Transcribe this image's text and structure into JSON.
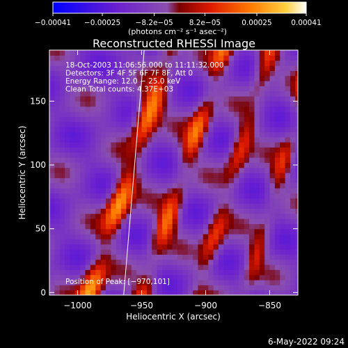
{
  "chart_data": {
    "type": "heatmap",
    "title": "Reconstructed RHESSI Image",
    "xlabel": "Heliocentric X (arcsec)",
    "ylabel": "Heliocentric Y (arcsec)",
    "xlim": [
      -1022,
      -828
    ],
    "ylim": [
      -2,
      190
    ],
    "xticks": [
      -1000,
      -950,
      -900,
      -850
    ],
    "xtick_labels": [
      "−1000",
      "−950",
      "−900",
      "−850"
    ],
    "yticks": [
      0,
      50,
      100,
      150
    ],
    "ytick_labels": [
      "0",
      "50",
      "100",
      "150"
    ],
    "colorbar": {
      "min": -0.00041,
      "max": 0.00041,
      "ticks": [
        -0.00041,
        -0.00025,
        -8.2e-05,
        8.2e-05,
        0.00025,
        0.00041
      ],
      "tick_labels": [
        "−0.00041",
        "−0.00025",
        "−8.2e−05",
        "8.2e−05",
        "0.00025",
        "0.00041"
      ],
      "units_label": "(photons cm⁻² s⁻¹ asec⁻²)",
      "colors": [
        "#0000ff",
        "#7a22cc",
        "#8a4fb0",
        "#cc1100",
        "#ff6a00",
        "#ffd040",
        "#ffffff"
      ]
    },
    "annotations": [
      "18‑Oct‑2003 11:06:56.000 to 11:11:32.000",
      "Detectors: 3F 4F 5F 6F 7F 8F, Att 0",
      "Energy Range: 12.0 − 25.0 keV",
      "Clean     Total counts: 4.37E+03"
    ],
    "peak_label": "Position of Peak: [−970,101]",
    "peak": [
      -970,
      101
    ],
    "limb_line": [
      [
        -964,
        -2
      ],
      [
        -948,
        190
      ]
    ],
    "bands": [
      {
        "x0": -992,
        "slope": 0.33,
        "width": 9,
        "peak": 0.00041
      },
      {
        "x0": -950,
        "slope": 0.33,
        "width": 8,
        "peak": 0.00033
      },
      {
        "x0": -908,
        "slope": 0.3,
        "width": 8,
        "peak": 0.00026
      },
      {
        "x0": -870,
        "slope": 0.28,
        "width": 7,
        "peak": 0.0002
      }
    ]
  },
  "footer_date": "6‑May‑2022 09:24"
}
